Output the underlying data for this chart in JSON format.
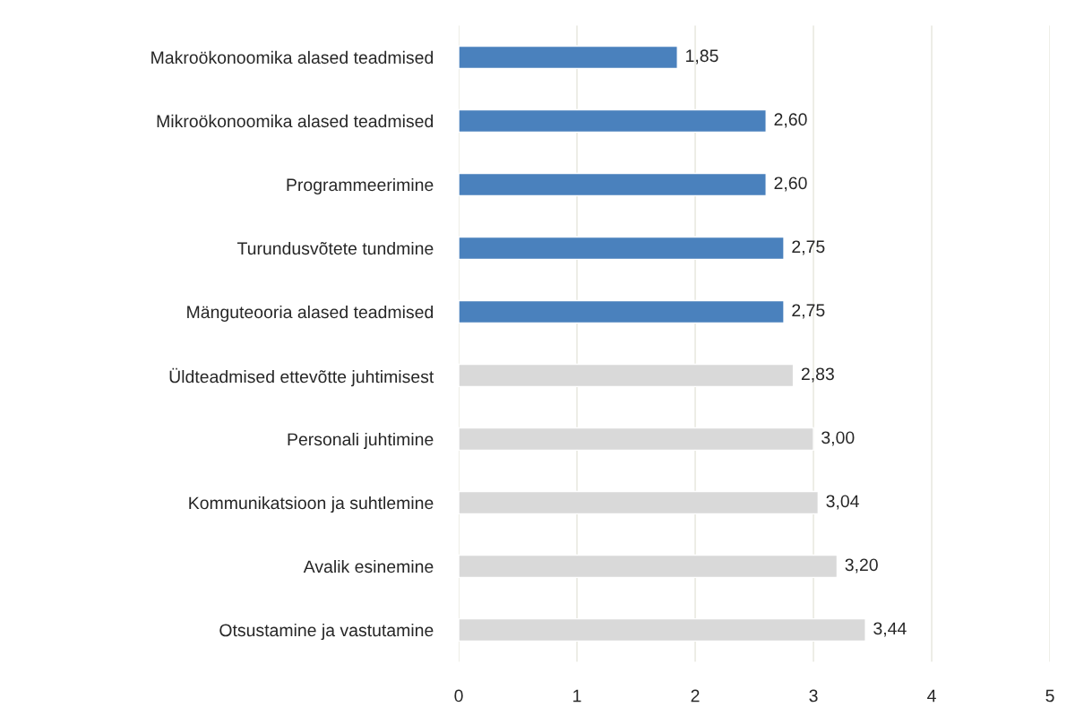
{
  "chart_data": {
    "type": "bar",
    "orientation": "horizontal",
    "categories": [
      "Makroökonoomika alased teadmised",
      "Mikroökonoomika alased teadmised",
      "Programmeerimine",
      "Turundusvõtete tundmine",
      "Mänguteooria alased teadmised",
      "Üldteadmised ettevõtte juhtimisest",
      "Personali juhtimine",
      "Kommunikatsioon ja suhtlemine",
      "Avalik esinemine",
      "Otsustamine ja vastutamine"
    ],
    "values": [
      1.85,
      2.6,
      2.6,
      2.75,
      2.75,
      2.83,
      3.0,
      3.04,
      3.2,
      3.44
    ],
    "value_labels": [
      "1,85",
      "2,60",
      "2,60",
      "2,75",
      "2,75",
      "2,83",
      "3,00",
      "3,04",
      "3,20",
      "3,44"
    ],
    "colors": [
      "#4a81bd",
      "#4a81bd",
      "#4a81bd",
      "#4a81bd",
      "#4a81bd",
      "#d9d9d9",
      "#d9d9d9",
      "#d9d9d9",
      "#d9d9d9",
      "#d9d9d9"
    ],
    "xlim": [
      0,
      5
    ],
    "xticks": [
      0,
      1,
      2,
      3,
      4,
      5
    ],
    "grid": "x",
    "legend": false
  }
}
